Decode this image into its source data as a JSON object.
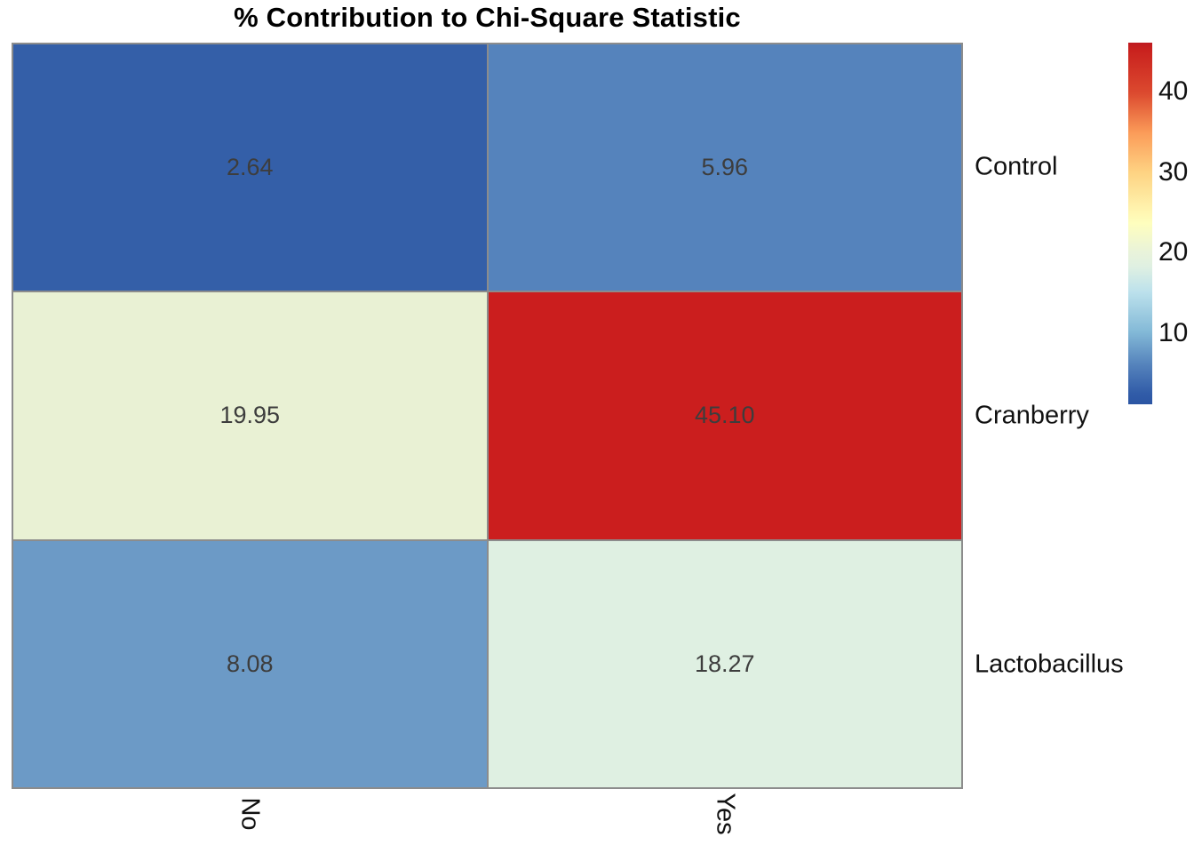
{
  "chart_data": {
    "type": "heatmap",
    "title": "% Contribution to Chi-Square Statistic",
    "rows": [
      "Control",
      "Cranberry",
      "Lactobacillus"
    ],
    "columns": [
      "No",
      "Yes"
    ],
    "values": [
      [
        2.64,
        5.96
      ],
      [
        19.95,
        45.1
      ],
      [
        8.08,
        18.27
      ]
    ],
    "cells": [
      {
        "row": "Control",
        "col": "No",
        "value": 2.64,
        "label": "2.64",
        "color": "#345FA8"
      },
      {
        "row": "Control",
        "col": "Yes",
        "value": 5.96,
        "label": "5.96",
        "color": "#5583BC"
      },
      {
        "row": "Cranberry",
        "col": "No",
        "value": 19.95,
        "label": "19.95",
        "color": "#E9F1D4"
      },
      {
        "row": "Cranberry",
        "col": "Yes",
        "value": 45.1,
        "label": "45.10",
        "color": "#CB1E1E"
      },
      {
        "row": "Lactobacillus",
        "col": "No",
        "value": 8.08,
        "label": "8.08",
        "color": "#6C9AC6"
      },
      {
        "row": "Lactobacillus",
        "col": "Yes",
        "value": 18.27,
        "label": "18.27",
        "color": "#DFF0E2"
      }
    ],
    "grid_color": "#8C8C8C",
    "value_text_color": "#3D3D3D",
    "legend_position": "right",
    "colorbar": {
      "palette": "RdYlBu reversed (blue = low, red = high)",
      "range": [
        1.2,
        46.1
      ],
      "ticks": [
        {
          "label": "40",
          "pos_pct": 13.6
        },
        {
          "label": "30",
          "pos_pct": 35.9
        },
        {
          "label": "20",
          "pos_pct": 58.1
        },
        {
          "label": "10",
          "pos_pct": 80.4
        }
      ],
      "gradient": [
        {
          "pos": 0,
          "color": "#BE1A20"
        },
        {
          "pos": 2,
          "color": "#C9211E"
        },
        {
          "pos": 14,
          "color": "#DC4A2F"
        },
        {
          "pos": 25,
          "color": "#FB9C59"
        },
        {
          "pos": 36,
          "color": "#FED383"
        },
        {
          "pos": 47,
          "color": "#FFF6B2"
        },
        {
          "pos": 50,
          "color": "#FEFEBE"
        },
        {
          "pos": 58,
          "color": "#E9F3DA"
        },
        {
          "pos": 62,
          "color": "#DFF0E2"
        },
        {
          "pos": 69,
          "color": "#BCE1EC"
        },
        {
          "pos": 80,
          "color": "#83B9D7"
        },
        {
          "pos": 89,
          "color": "#5583BC"
        },
        {
          "pos": 97,
          "color": "#315CA8"
        },
        {
          "pos": 100,
          "color": "#2B55A3"
        }
      ]
    }
  }
}
